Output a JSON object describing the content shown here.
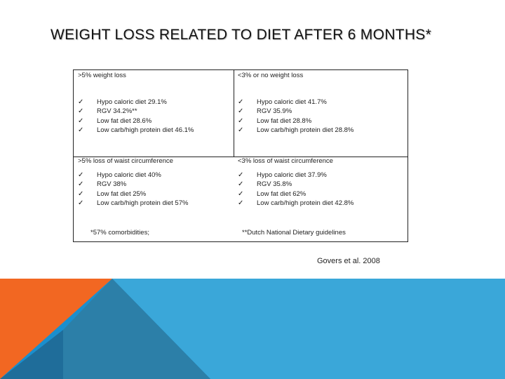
{
  "title": "WEIGHT LOSS RELATED TO DIET AFTER 6 MONTHS*",
  "table": {
    "top_left": {
      "header": ">5% weight loss",
      "items": [
        "Hypo caloric diet 29.1%",
        "RGV 34.2%**",
        "Low fat diet 28.6%",
        "Low carb/high protein diet 46.1%"
      ]
    },
    "top_right": {
      "header": "<3% or no weight loss",
      "items": [
        "Hypo caloric diet 41.7%",
        "RGV 35.9%",
        "Low fat diet 28.8%",
        "Low carb/high protein diet 28.8%"
      ]
    },
    "bottom_left": {
      "header": ">5% loss of waist circumference",
      "items": [
        "Hypo caloric diet 40%",
        "RGV 38%",
        "Low fat diet 25%",
        "Low carb/high protein diet 57%"
      ]
    },
    "bottom_right": {
      "header": "<3% loss of waist circumference",
      "items": [
        "Hypo caloric diet 37.9%",
        "RGV 35.8%",
        "Low fat diet 62%",
        "Low carb/high protein diet 42.8%"
      ]
    },
    "footnote_left": "*57% comorbidities;",
    "footnote_right": "**Dutch National Dietary guidelines"
  },
  "citation": "Govers et al. 2008",
  "check_glyph": "✓",
  "colors": {
    "orange": "#f26722",
    "blue": "#1a8fce",
    "dark_blue": "#1f6d9a",
    "light_blue": "#3aa7d9",
    "teal": "#2c7fa8"
  }
}
